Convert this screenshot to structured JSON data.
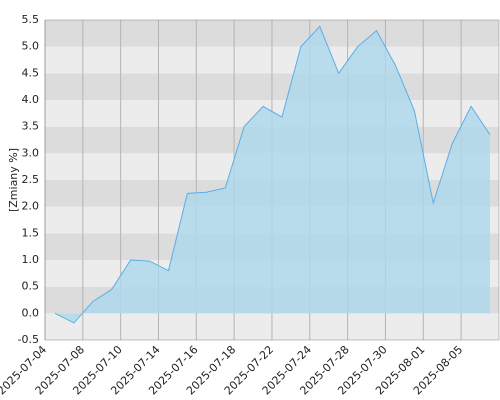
{
  "chart_data": {
    "type": "area",
    "y_label": "[Zmiany %]",
    "categories": [
      "2025-07-04",
      null,
      "2025-07-08",
      null,
      "2025-07-10",
      null,
      "2025-07-14",
      null,
      "2025-07-16",
      null,
      "2025-07-18",
      null,
      "2025-07-22",
      null,
      "2025-07-24",
      null,
      "2025-07-28",
      null,
      "2025-07-30",
      null,
      "2025-08-01",
      null,
      "2025-08-05",
      null
    ],
    "values": [
      0.0,
      -0.18,
      0.22,
      0.45,
      1.0,
      0.98,
      0.8,
      2.25,
      2.27,
      2.35,
      3.5,
      3.88,
      3.68,
      5.0,
      5.38,
      4.5,
      5.0,
      5.3,
      4.65,
      3.8,
      2.07,
      3.18,
      3.88,
      3.35
    ],
    "color": "#5aaee6",
    "fill": "#add8ec",
    "ylim": [
      -0.5,
      5.5
    ],
    "yticks": [
      -0.5,
      {
        "value": 0,
        "label": "0.0"
      },
      0.5,
      {
        "value": 1,
        "label": "1.0"
      },
      1.5,
      {
        "value": 2,
        "label": "2.0"
      },
      2.5,
      {
        "value": 3,
        "label": "3.0"
      },
      3.5,
      {
        "value": 4,
        "label": "4.0"
      },
      4.5,
      {
        "value": 5,
        "label": "5.0"
      },
      5.5
    ],
    "band_colors": [
      "#ececec",
      "#dcdcdc"
    ],
    "grid": true
  }
}
